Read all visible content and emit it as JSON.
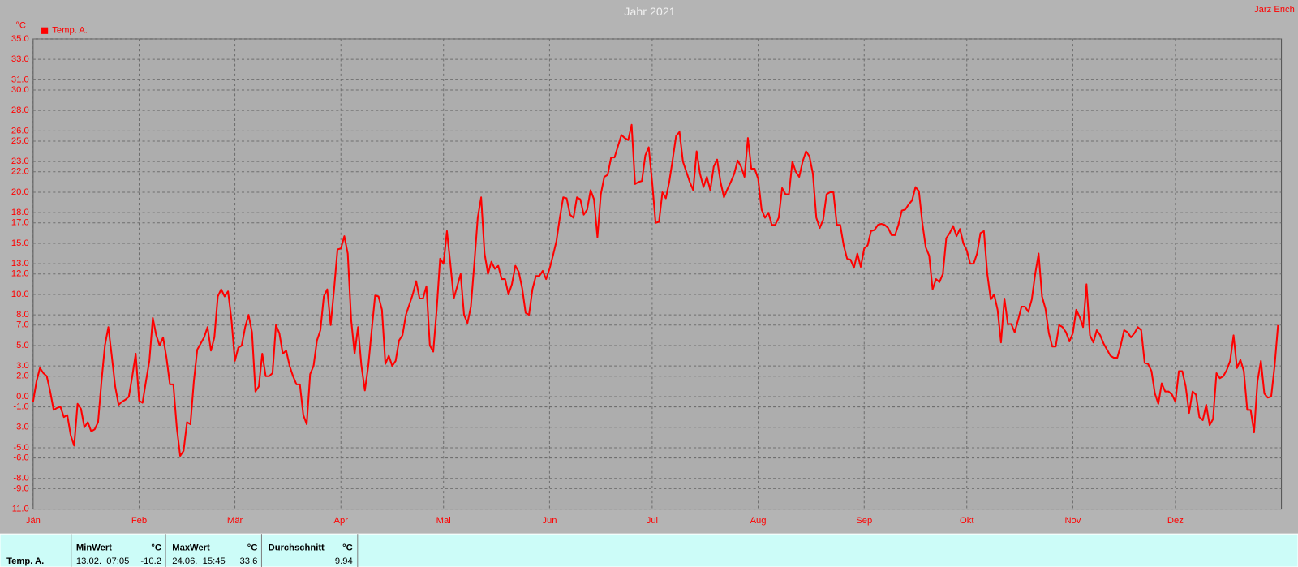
{
  "chart_data": {
    "type": "line",
    "title": "Jahr 2021",
    "y_unit": "°C",
    "author": "Jarz Erich",
    "xlim": [
      0,
      365
    ],
    "xticks": [
      {
        "value": 0,
        "label": "Jän"
      },
      {
        "value": 31,
        "label": "Feb"
      },
      {
        "value": 59,
        "label": "Mär"
      },
      {
        "value": 90,
        "label": "Apr"
      },
      {
        "value": 120,
        "label": "Mai"
      },
      {
        "value": 151,
        "label": "Jun"
      },
      {
        "value": 181,
        "label": "Jul"
      },
      {
        "value": 212,
        "label": "Aug"
      },
      {
        "value": 243,
        "label": "Sep"
      },
      {
        "value": 273,
        "label": "Okt"
      },
      {
        "value": 304,
        "label": "Nov"
      },
      {
        "value": 334,
        "label": "Dez"
      }
    ],
    "ylim": [
      -11,
      35
    ],
    "yticks": [
      {
        "value": 35,
        "label": "35.0"
      },
      {
        "value": 33,
        "label": "33.0"
      },
      {
        "value": 31,
        "label": "31.0"
      },
      {
        "value": 30,
        "label": "30.0"
      },
      {
        "value": 28,
        "label": "28.0"
      },
      {
        "value": 26,
        "label": "26.0"
      },
      {
        "value": 25,
        "label": "25.0"
      },
      {
        "value": 23,
        "label": "23.0"
      },
      {
        "value": 22,
        "label": "22.0"
      },
      {
        "value": 20,
        "label": "20.0"
      },
      {
        "value": 18,
        "label": "18.0"
      },
      {
        "value": 17,
        "label": "17.0"
      },
      {
        "value": 15,
        "label": "15.0"
      },
      {
        "value": 13,
        "label": "13.0"
      },
      {
        "value": 12,
        "label": "12.0"
      },
      {
        "value": 10,
        "label": "10.0"
      },
      {
        "value": 8,
        "label": "8.0"
      },
      {
        "value": 7,
        "label": "7.0"
      },
      {
        "value": 5,
        "label": "5.0"
      },
      {
        "value": 3,
        "label": "3.0"
      },
      {
        "value": 2,
        "label": "2.0"
      },
      {
        "value": 0,
        "label": "0.0"
      },
      {
        "value": -1,
        "label": "-1.0"
      },
      {
        "value": -3,
        "label": "-3.0"
      },
      {
        "value": -5,
        "label": "-5.0"
      },
      {
        "value": -6,
        "label": "-6.0"
      },
      {
        "value": -8,
        "label": "-8.0"
      },
      {
        "value": -9,
        "label": "-9.0"
      },
      {
        "value": -11,
        "label": "-11.0"
      }
    ],
    "grid": true,
    "x": [
      0,
      1,
      2,
      3,
      4,
      5,
      6,
      7,
      8,
      9,
      10,
      11,
      12,
      13,
      14,
      15,
      16,
      17,
      18,
      19,
      20,
      21,
      22,
      23,
      24,
      25,
      26,
      27,
      28,
      29,
      30,
      31,
      32,
      33,
      34,
      35,
      36,
      37,
      38,
      39,
      40,
      41,
      42,
      43,
      44,
      45,
      46,
      47,
      48,
      49,
      50,
      51,
      52,
      53,
      54,
      55,
      56,
      57,
      58,
      59,
      60,
      61,
      62,
      63,
      64,
      65,
      66,
      67,
      68,
      69,
      70,
      71,
      72,
      73,
      74,
      75,
      76,
      77,
      78,
      79,
      80,
      81,
      82,
      83,
      84,
      85,
      86,
      87,
      88,
      89,
      90,
      91,
      92,
      93,
      94,
      95,
      96,
      97,
      98,
      99,
      100,
      101,
      102,
      103,
      104,
      105,
      106,
      107,
      108,
      109,
      110,
      111,
      112,
      113,
      114,
      115,
      116,
      117,
      118,
      119,
      120,
      121,
      122,
      123,
      124,
      125,
      126,
      127,
      128,
      129,
      130,
      131,
      132,
      133,
      134,
      135,
      136,
      137,
      138,
      139,
      140,
      141,
      142,
      143,
      144,
      145,
      146,
      147,
      148,
      149,
      150,
      151,
      152,
      153,
      154,
      155,
      156,
      157,
      158,
      159,
      160,
      161,
      162,
      163,
      164,
      165,
      166,
      167,
      168,
      169,
      170,
      171,
      172,
      173,
      174,
      175,
      176,
      177,
      178,
      179,
      180,
      181,
      182,
      183,
      184,
      185,
      186,
      187,
      188,
      189,
      190,
      191,
      192,
      193,
      194,
      195,
      196,
      197,
      198,
      199,
      200,
      201,
      202,
      203,
      204,
      205,
      206,
      207,
      208,
      209,
      210,
      211,
      212,
      213,
      214,
      215,
      216,
      217,
      218,
      219,
      220,
      221,
      222,
      223,
      224,
      225,
      226,
      227,
      228,
      229,
      230,
      231,
      232,
      233,
      234,
      235,
      236,
      237,
      238,
      239,
      240,
      241,
      242,
      243,
      244,
      245,
      246,
      247,
      248,
      249,
      250,
      251,
      252,
      253,
      254,
      255,
      256,
      257,
      258,
      259,
      260,
      261,
      262,
      263,
      264,
      265,
      266,
      267,
      268,
      269,
      270,
      271,
      272,
      273,
      274,
      275,
      276,
      277,
      278,
      279,
      280,
      281,
      282,
      283,
      284,
      285,
      286,
      287,
      288,
      289,
      290,
      291,
      292,
      293,
      294,
      295,
      296,
      297,
      298,
      299,
      300,
      301,
      302,
      303,
      304,
      305,
      306,
      307,
      308,
      309,
      310,
      311,
      312,
      313,
      314,
      315,
      316,
      317,
      318,
      319,
      320,
      321,
      322,
      323,
      324,
      325,
      326,
      327,
      328,
      329,
      330,
      331,
      332,
      333,
      334,
      335,
      336,
      337,
      338,
      339,
      340,
      341,
      342,
      343,
      344,
      345,
      346,
      347,
      348,
      349,
      350,
      351,
      352,
      353,
      354,
      355,
      356,
      357,
      358,
      359,
      360,
      361,
      362,
      363,
      364
    ],
    "series": [
      {
        "name": "Temp. A.",
        "color": "#ff0000",
        "values": [
          -0.5,
          1.5,
          2.8,
          2.3,
          2.0,
          0.5,
          -1.3,
          -1.1,
          -1.0,
          -2.0,
          -1.8,
          -3.8,
          -4.8,
          -0.7,
          -1.2,
          -3.0,
          -2.5,
          -3.4,
          -3.2,
          -2.5,
          1.5,
          5.0,
          6.8,
          4.0,
          1.0,
          -0.8,
          -0.5,
          -0.3,
          0.0,
          2.0,
          4.2,
          -0.4,
          -0.6,
          1.5,
          3.5,
          7.7,
          6.0,
          5.0,
          5.8,
          3.8,
          1.2,
          1.2,
          -3.0,
          -5.8,
          -5.3,
          -2.5,
          -2.7,
          1.5,
          4.6,
          5.2,
          5.8,
          6.8,
          4.5,
          5.8,
          9.8,
          10.5,
          9.8,
          10.3,
          7.5,
          3.5,
          4.8,
          5.0,
          6.8,
          8.0,
          6.3,
          0.5,
          1.0,
          4.2,
          2.0,
          2.0,
          2.3,
          7.0,
          6.2,
          4.2,
          4.5,
          3.0,
          2.0,
          1.2,
          1.2,
          -1.8,
          -2.7,
          2.2,
          3.0,
          5.5,
          6.5,
          9.8,
          10.5,
          7.0,
          10.5,
          14.4,
          14.5,
          15.7,
          14.0,
          7.5,
          4.2,
          6.8,
          3.0,
          0.6,
          3.0,
          6.5,
          9.9,
          9.8,
          8.5,
          3.2,
          4.0,
          3.0,
          3.5,
          5.5,
          6.0,
          8.0,
          9.0,
          10.0,
          11.3,
          9.6,
          9.6,
          10.8,
          5.0,
          4.4,
          8.5,
          13.5,
          13.0,
          16.2,
          13.0,
          9.6,
          10.8,
          12.0,
          8.0,
          7.2,
          8.8,
          13.0,
          17.5,
          19.5,
          14.0,
          12.0,
          13.2,
          12.5,
          12.8,
          11.5,
          11.5,
          10.0,
          11.0,
          12.8,
          12.2,
          10.6,
          8.2,
          8.0,
          10.5,
          11.8,
          11.8,
          12.3,
          11.5,
          12.5,
          13.8,
          15.2,
          17.5,
          19.5,
          19.4,
          17.8,
          17.5,
          19.5,
          19.3,
          17.8,
          18.3,
          20.2,
          19.3,
          15.6,
          19.8,
          21.5,
          21.7,
          23.4,
          23.4,
          24.5,
          25.6,
          25.3,
          25.1,
          26.6,
          20.8,
          21.0,
          21.1,
          23.6,
          24.4,
          21.0,
          17.0,
          17.1,
          20.0,
          19.4,
          21.0,
          23.2,
          25.5,
          25.9,
          23.0,
          22.0,
          21.0,
          20.2,
          24.0,
          21.8,
          20.5,
          21.5,
          20.2,
          22.5,
          23.2,
          21.0,
          19.5,
          20.3,
          21.0,
          21.8,
          23.1,
          22.5,
          21.5,
          25.3,
          22.3,
          22.3,
          21.3,
          18.3,
          17.5,
          18.0,
          16.8,
          16.8,
          17.5,
          20.4,
          19.8,
          19.8,
          23.0,
          22.0,
          21.5,
          23.0,
          24.0,
          23.5,
          21.8,
          17.5,
          16.5,
          17.3,
          19.8,
          20.0,
          20.0,
          16.8,
          16.8,
          14.8,
          13.5,
          13.4,
          12.6,
          14.0,
          12.7,
          14.5,
          14.8,
          16.2,
          16.3,
          16.8,
          16.9,
          16.8,
          16.5,
          15.8,
          15.8,
          16.8,
          18.2,
          18.3,
          18.8,
          19.2,
          20.5,
          20.1,
          17.0,
          14.6,
          13.8,
          10.5,
          11.5,
          11.2,
          12.0,
          15.5,
          16.0,
          16.7,
          15.7,
          16.4,
          15.0,
          14.3,
          13.0,
          13.0,
          14.0,
          16.0,
          16.2,
          12.0,
          9.5,
          10.0,
          8.5,
          5.3,
          9.6,
          7.1,
          7.1,
          6.3,
          7.5,
          8.8,
          8.8,
          8.3,
          9.5,
          12.0,
          14.0,
          9.8,
          8.6,
          6.2,
          4.9,
          4.9,
          7.0,
          6.8,
          6.3,
          5.4,
          6.2,
          8.5,
          7.8,
          6.8,
          11.0,
          6.0,
          5.3,
          6.5,
          6.0,
          5.2,
          4.6,
          4.0,
          3.8,
          3.8,
          5.0,
          6.5,
          6.3,
          5.8,
          6.2,
          6.8,
          6.5,
          3.3,
          3.2,
          2.5,
          0.3,
          -0.7,
          1.3,
          0.5,
          0.5,
          0.2,
          -0.5,
          2.5,
          2.5,
          1.0,
          -1.6,
          0.5,
          0.2,
          -2.0,
          -2.3,
          -0.8,
          -2.8,
          -2.2,
          2.3,
          1.8,
          2.0,
          2.6,
          3.5,
          6.0,
          2.8,
          3.6,
          2.5,
          -1.3,
          -1.3,
          -3.5,
          1.5,
          3.5,
          0.3,
          -0.1,
          0.0,
          3.0,
          7.0
        ]
      }
    ],
    "summary": {
      "row_label": "Temp. A.",
      "columns": [
        {
          "header": "MinWert",
          "unit": "°C",
          "time": "13.02.  07:05",
          "value": -10.2
        },
        {
          "header": "MaxWert",
          "unit": "°C",
          "time": "24.06.  15:45",
          "value": 33.6
        },
        {
          "header": "Durchschnitt",
          "unit": "°C",
          "value": 9.94
        }
      ]
    }
  }
}
